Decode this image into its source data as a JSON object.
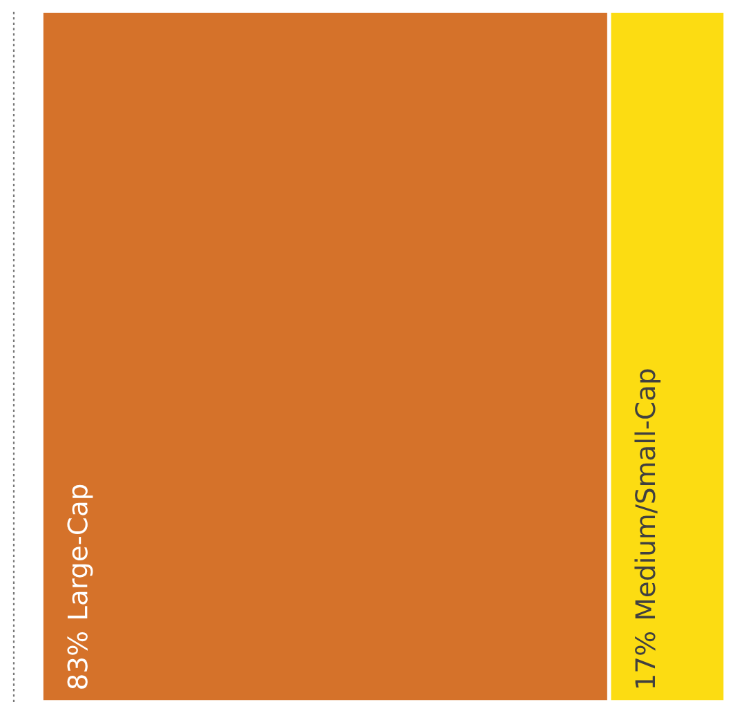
{
  "chart_data": {
    "type": "other",
    "categories": [
      "Large-Cap",
      "Medium/Small-Cap"
    ],
    "values": [
      83,
      17
    ],
    "value_labels": [
      "83%",
      "17%"
    ],
    "colors": [
      "#d5722a",
      "#fcdc12"
    ]
  }
}
